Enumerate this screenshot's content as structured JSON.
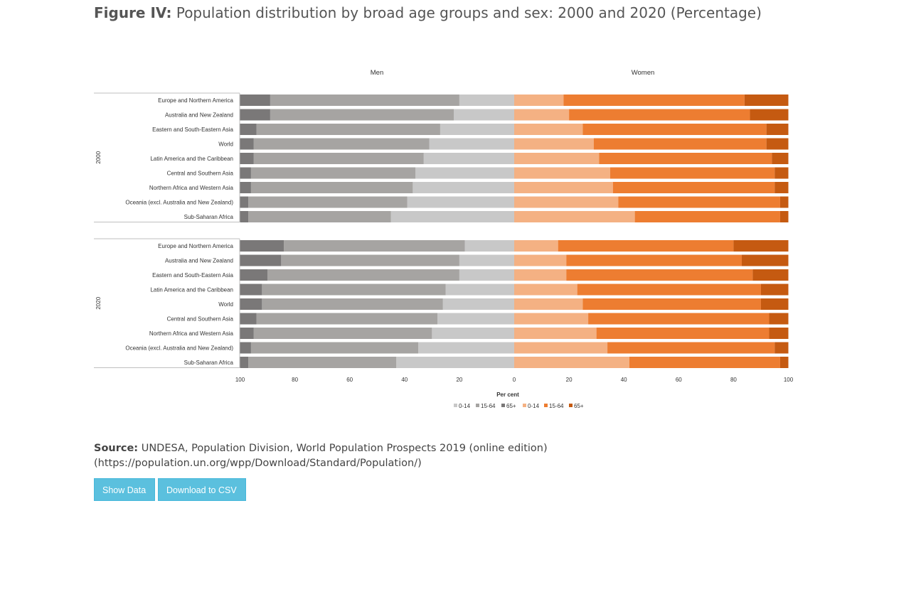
{
  "header": {
    "figure_label": "Figure IV:",
    "figure_title": "Population distribution by broad age groups and sex: 2000 and 2020 (Percentage)"
  },
  "chart_data": {
    "type": "bar",
    "orientation": "horizontal-stacked-diverging",
    "panel_titles": {
      "left": "Men",
      "right": "Women"
    },
    "xlabel": "Per cent",
    "x_ticks_left": [
      "100",
      "80",
      "60",
      "40",
      "20",
      "0"
    ],
    "x_ticks_right": [
      "20",
      "40",
      "60",
      "80",
      "100"
    ],
    "xlim": [
      0,
      100
    ],
    "legend": [
      {
        "label": "0-14",
        "sex": "Men",
        "color": "#c8c8c8"
      },
      {
        "label": "15-64",
        "sex": "Men",
        "color": "#a6a4a2"
      },
      {
        "label": "65+",
        "sex": "Men",
        "color": "#7a7878"
      },
      {
        "label": "0-14",
        "sex": "Women",
        "color": "#f4b183"
      },
      {
        "label": "15-64",
        "sex": "Women",
        "color": "#ed7d31"
      },
      {
        "label": "65+",
        "sex": "Women",
        "color": "#c55a11"
      }
    ],
    "legend_position": "bottom",
    "groups": [
      {
        "year": "2000",
        "rows": [
          {
            "region": "Europe and Northern America",
            "men": [
              20,
              69,
              11
            ],
            "women": [
              18,
              66,
              16
            ]
          },
          {
            "region": "Australia and New Zealand",
            "men": [
              22,
              67,
              11
            ],
            "women": [
              20,
              66,
              14
            ]
          },
          {
            "region": "Eastern and South-Eastern Asia",
            "men": [
              27,
              67,
              6
            ],
            "women": [
              25,
              67,
              8
            ]
          },
          {
            "region": "World",
            "men": [
              31,
              64,
              5
            ],
            "women": [
              29,
              63,
              8
            ]
          },
          {
            "region": "Latin America and the Caribbean",
            "men": [
              33,
              62,
              5
            ],
            "women": [
              31,
              63,
              6
            ]
          },
          {
            "region": "Central and Southern Asia",
            "men": [
              36,
              60,
              4
            ],
            "women": [
              35,
              60,
              5
            ]
          },
          {
            "region": "Northern Africa and Western Asia",
            "men": [
              37,
              59,
              4
            ],
            "women": [
              36,
              59,
              5
            ]
          },
          {
            "region": "Oceania (excl. Australia and New Zealand)",
            "men": [
              39,
              58,
              3
            ],
            "women": [
              38,
              59,
              3
            ]
          },
          {
            "region": "Sub-Saharan Africa",
            "men": [
              45,
              52,
              3
            ],
            "women": [
              44,
              53,
              3
            ]
          }
        ]
      },
      {
        "year": "2020",
        "rows": [
          {
            "region": "Europe and Northern America",
            "men": [
              18,
              66,
              16
            ],
            "women": [
              16,
              64,
              20
            ]
          },
          {
            "region": "Australia and New Zealand",
            "men": [
              20,
              65,
              15
            ],
            "women": [
              19,
              64,
              17
            ]
          },
          {
            "region": "Eastern and South-Eastern Asia",
            "men": [
              20,
              70,
              10
            ],
            "women": [
              19,
              68,
              13
            ]
          },
          {
            "region": "Latin America and the Caribbean",
            "men": [
              25,
              67,
              8
            ],
            "women": [
              23,
              67,
              10
            ]
          },
          {
            "region": "World",
            "men": [
              26,
              66,
              8
            ],
            "women": [
              25,
              65,
              10
            ]
          },
          {
            "region": "Central and Southern Asia",
            "men": [
              28,
              66,
              6
            ],
            "women": [
              27,
              66,
              7
            ]
          },
          {
            "region": "Northern Africa and Western Asia",
            "men": [
              30,
              65,
              5
            ],
            "women": [
              30,
              63,
              7
            ]
          },
          {
            "region": "Oceania (excl. Australia and New Zealand)",
            "men": [
              35,
              61,
              4
            ],
            "women": [
              34,
              61,
              5
            ]
          },
          {
            "region": "Sub-Saharan Africa",
            "men": [
              43,
              54,
              3
            ],
            "women": [
              42,
              55,
              3
            ]
          }
        ]
      }
    ]
  },
  "source": {
    "label": "Source:",
    "text": "UNDESA, Population Division, World Population Prospects 2019 (online edition)",
    "url": "(https://population.un.org/wpp/Download/Standard/Population/)"
  },
  "buttons": {
    "show_data": "Show Data",
    "download_csv": "Download to CSV"
  }
}
